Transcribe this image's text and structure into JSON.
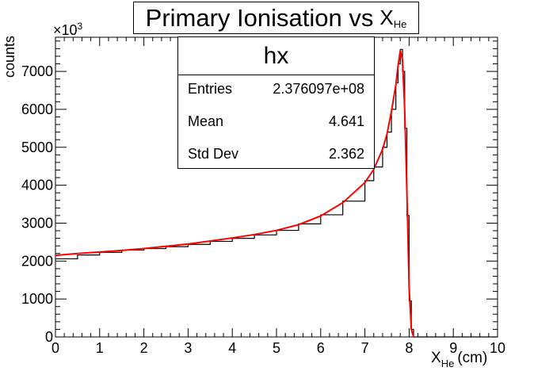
{
  "chart_data": {
    "type": "line",
    "title": "Primary Ionisation vs",
    "title_variable": "X",
    "title_variable_sub": "He",
    "xlabel": "X",
    "xlabel_sub": "He",
    "xlabel_unit": "(cm)",
    "ylabel": "counts",
    "y_exponent_base": "×10",
    "y_exponent_power": "3",
    "xlim": [
      0,
      10
    ],
    "ylim": [
      0,
      7900
    ],
    "x_ticks": [
      "0",
      "1",
      "2",
      "3",
      "4",
      "5",
      "6",
      "7",
      "8",
      "9",
      "10"
    ],
    "y_ticks": [
      "0",
      "1000",
      "2000",
      "3000",
      "4000",
      "5000",
      "6000",
      "7000"
    ],
    "x_tick_values": [
      0,
      1,
      2,
      3,
      4,
      5,
      6,
      7,
      8,
      9,
      10
    ],
    "y_tick_values": [
      0,
      1000,
      2000,
      3000,
      4000,
      5000,
      6000,
      7000
    ],
    "stats": {
      "name": "hx",
      "entries_label": "Entries",
      "entries": "2.376097e+08",
      "mean_label": "Mean",
      "mean": "4.641",
      "stddev_label": "Std Dev",
      "stddev": "2.362"
    },
    "histogram": {
      "name": "hx",
      "color": "#000000",
      "x": [
        0.0,
        0.5,
        1.0,
        1.5,
        2.0,
        2.5,
        3.0,
        3.5,
        4.0,
        4.5,
        5.0,
        5.5,
        6.0,
        6.5,
        7.0,
        7.2,
        7.4,
        7.5,
        7.6,
        7.7,
        7.75,
        7.8,
        7.85,
        7.9,
        7.95,
        8.0,
        8.05,
        8.1,
        8.15,
        8.2,
        9.0,
        10.0
      ],
      "y": [
        2060,
        2160,
        2230,
        2290,
        2330,
        2380,
        2440,
        2520,
        2600,
        2690,
        2810,
        2980,
        3220,
        3580,
        4120,
        4480,
        5000,
        5400,
        6000,
        6700,
        7200,
        7580,
        7000,
        5500,
        3200,
        950,
        200,
        0,
        0,
        0,
        0,
        0
      ]
    },
    "fit": {
      "name": "fit",
      "color": "#ff0000",
      "x": [
        0.0,
        0.5,
        1.0,
        1.5,
        2.0,
        2.5,
        3.0,
        3.5,
        4.0,
        4.5,
        5.0,
        5.5,
        6.0,
        6.5,
        7.0,
        7.2,
        7.4,
        7.5,
        7.6,
        7.7,
        7.75,
        7.8,
        7.85,
        7.9,
        7.95,
        8.0,
        8.05,
        8.1
      ],
      "y": [
        2150,
        2200,
        2240,
        2280,
        2330,
        2390,
        2450,
        2530,
        2610,
        2700,
        2810,
        2960,
        3190,
        3540,
        4070,
        4420,
        4950,
        5350,
        5950,
        6650,
        7150,
        7550,
        7300,
        6000,
        3800,
        1300,
        200,
        0
      ]
    }
  }
}
